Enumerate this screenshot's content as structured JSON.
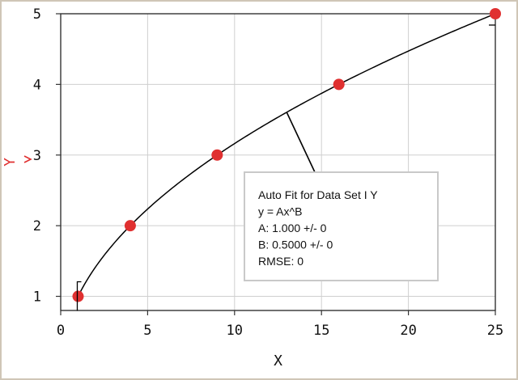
{
  "chart_data": {
    "type": "scatter",
    "xlabel": "X",
    "ylabel": "Y",
    "xlim": [
      0,
      25
    ],
    "ylim": [
      0.8,
      5
    ],
    "xticks": [
      0,
      5,
      10,
      15,
      20,
      25
    ],
    "yticks": [
      1,
      2,
      3,
      4,
      5
    ],
    "grid": true,
    "colors": {
      "points": "#e03030",
      "ylabel": "#e03030",
      "curve": "#000000",
      "grid": "#cfcfcf",
      "box_border": "#c9c9c9"
    },
    "series": [
      {
        "x": [
          1,
          4,
          9,
          16,
          25
        ],
        "values": [
          1,
          2,
          3,
          4,
          5
        ]
      }
    ],
    "fit": {
      "model": "power",
      "A": 1.0,
      "B": 0.5,
      "x_range": [
        1,
        25
      ]
    },
    "annotation": {
      "lines": [
        "Auto Fit for  Data Set I Y",
        "y = Ax^B",
        "A: 1.000 +/- 0",
        "B: 0.5000 +/- 0",
        "RMSE: 0"
      ],
      "anchor_x": 13
    }
  }
}
